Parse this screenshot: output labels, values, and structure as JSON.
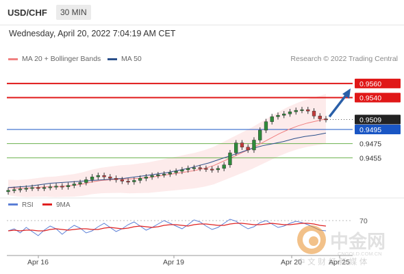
{
  "header": {
    "symbol": "USD/CHF",
    "timeframe": "30 MIN"
  },
  "datetime": "Wednesday, April 20, 2022 7:04:19 AM CET",
  "legend": [
    {
      "label": "MA 20 + Bollinger Bands",
      "color": "#f08080"
    },
    {
      "label": "MA 50",
      "color": "#2a4f8a"
    }
  ],
  "credit": "Research © 2022 Trading Central",
  "indicator_legend": [
    {
      "label": "RSI",
      "color": "#5b7fd6"
    },
    {
      "label": "9MA",
      "color": "#e02020"
    }
  ],
  "watermark": {
    "name": "中金网",
    "site": "CNGOLD.COM.CN",
    "tagline": "中 文 财 经 新 媒 体"
  },
  "colors": {
    "resistance": "#e01818",
    "support": "#6ab04c",
    "current": "#222222",
    "pivot": "#1a56c4",
    "arrow": "#2a5fa8",
    "bull": "#2e8b3a",
    "bear": "#c23a3a"
  },
  "chart_data": [
    {
      "type": "line",
      "title": "USD/CHF 30 MIN",
      "x_ticks": [
        "Apr 16",
        "Apr 19",
        "Apr 20",
        "Apr 25"
      ],
      "ylim": [
        0.9405,
        0.9585
      ],
      "levels": [
        {
          "value": 0.956,
          "label": "0.9560",
          "kind": "resistance"
        },
        {
          "value": 0.954,
          "label": "0.9540",
          "kind": "resistance"
        },
        {
          "value": 0.9509,
          "label": "0.9509",
          "kind": "current"
        },
        {
          "value": 0.9495,
          "label": "0.9495",
          "kind": "pivot"
        },
        {
          "value": 0.9475,
          "label": "0.9475",
          "kind": "support"
        },
        {
          "value": 0.9455,
          "label": "0.9455",
          "kind": "support"
        }
      ],
      "series": [
        {
          "name": "Price",
          "values": [
            0.9409,
            0.941,
            0.9411,
            0.9412,
            0.9413,
            0.9412,
            0.9413,
            0.9414,
            0.9415,
            0.9414,
            0.9416,
            0.9418,
            0.942,
            0.9424,
            0.9428,
            0.943,
            0.9428,
            0.9426,
            0.9424,
            0.9422,
            0.9421,
            0.9423,
            0.9426,
            0.9428,
            0.943,
            0.9431,
            0.9432,
            0.9434,
            0.9436,
            0.9438,
            0.944,
            0.9441,
            0.944,
            0.9439,
            0.9438,
            0.944,
            0.9445,
            0.9462,
            0.9476,
            0.947,
            0.9466,
            0.948,
            0.9494,
            0.9506,
            0.9513,
            0.9515,
            0.9517,
            0.952,
            0.9522,
            0.9523,
            0.9521,
            0.9514,
            0.951,
            0.9509
          ]
        },
        {
          "name": "MA 20",
          "values": [
            0.9413,
            0.9412,
            0.9412,
            0.9413,
            0.9414,
            0.9414,
            0.9415,
            0.9416,
            0.9418,
            0.9421,
            0.9423,
            0.9424,
            0.9425,
            0.9425,
            0.9426,
            0.9427,
            0.9429,
            0.9431,
            0.9433,
            0.9435,
            0.9437,
            0.944,
            0.9444,
            0.945,
            0.9456,
            0.9462,
            0.9468,
            0.9475,
            0.9482,
            0.9489,
            0.9495,
            0.95,
            0.9504,
            0.9507,
            0.951
          ]
        },
        {
          "name": "MA 50",
          "values": [
            0.9413,
            0.9414,
            0.9415,
            0.9417,
            0.9419,
            0.942,
            0.9421,
            0.9422,
            0.9423,
            0.9424,
            0.9425,
            0.9426,
            0.9428,
            0.943,
            0.9432,
            0.9434,
            0.9437,
            0.944,
            0.9444,
            0.9448,
            0.9453,
            0.9458,
            0.9463,
            0.9468,
            0.9472,
            0.9475,
            0.9478,
            0.9482,
            0.9485,
            0.9487,
            0.949
          ]
        }
      ],
      "forecast_arrow": {
        "from": 0.9513,
        "to": 0.9553
      }
    },
    {
      "type": "line",
      "title": "RSI",
      "y_ticks": [
        70
      ],
      "ylim": [
        20,
        80
      ],
      "series": [
        {
          "name": "RSI",
          "values": [
            55,
            58,
            52,
            60,
            54,
            48,
            56,
            62,
            58,
            50,
            57,
            63,
            59,
            52,
            55,
            61,
            66,
            60,
            54,
            58,
            64,
            68,
            62,
            56,
            60,
            65,
            70,
            66,
            62,
            58,
            64,
            71,
            68,
            62,
            57,
            60,
            66,
            72,
            69,
            63,
            58,
            61,
            67,
            70,
            65,
            60,
            62,
            66,
            69,
            67,
            64,
            60,
            56,
            55
          ]
        },
        {
          "name": "9MA",
          "values": [
            55,
            56,
            55,
            56,
            56,
            55,
            55,
            57,
            58,
            57,
            56,
            57,
            58,
            58,
            57,
            57,
            59,
            60,
            59,
            58,
            59,
            61,
            62,
            61,
            60,
            61,
            63,
            64,
            64,
            63,
            62,
            64,
            65,
            65,
            64,
            63,
            63,
            65,
            66,
            66,
            65,
            64,
            64,
            65,
            66,
            65,
            64,
            64,
            65,
            66,
            66,
            65,
            63,
            62
          ]
        }
      ]
    }
  ]
}
